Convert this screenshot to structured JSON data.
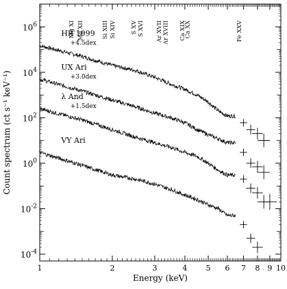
{
  "chart_data": {
    "type": "scatter",
    "xlabel": "Energy (keV)",
    "ylabel": "Count spectrum (ct s⁻¹ keV⁻¹)",
    "x_scale": "log",
    "y_scale": "log",
    "xlim": [
      1,
      10
    ],
    "ylim": [
      5e-05,
      10000000
    ],
    "x_ticks": [
      1,
      2,
      3,
      4,
      5,
      6,
      7,
      8,
      9,
      10
    ],
    "x_tick_labels": [
      "1",
      "2",
      "3",
      "4",
      "5",
      "6",
      "7",
      "8",
      "9",
      "10"
    ],
    "y_ticks": [
      0.0001,
      0.01,
      1,
      100,
      10000,
      1000000
    ],
    "y_tick_labels": [
      {
        "base": "10",
        "exp": "-4"
      },
      {
        "base": "10",
        "exp": "-2"
      },
      {
        "base": "10",
        "exp": "0"
      },
      {
        "base": "10",
        "exp": "2"
      },
      {
        "base": "10",
        "exp": "4"
      },
      {
        "base": "10",
        "exp": "6"
      }
    ],
    "line_labels": [
      {
        "text": "Mg XI",
        "energy": 1.35
      },
      {
        "text": "Mg XII",
        "energy": 1.47
      },
      {
        "text": "Si XIII",
        "energy": 1.86
      },
      {
        "text": "Si XIV",
        "energy": 2.0
      },
      {
        "text": "S XV",
        "energy": 2.45
      },
      {
        "text": "S XVI",
        "energy": 2.62
      },
      {
        "text": "Ar XVII",
        "energy": 3.12
      },
      {
        "text": "Ar XVIII",
        "energy": 3.32
      },
      {
        "text": "Ca XIX",
        "energy": 3.9
      },
      {
        "text": "Ca XX",
        "energy": 4.1
      },
      {
        "text": "Fe XXV",
        "energy": 6.7
      }
    ],
    "series": [
      {
        "name": "HR 1099",
        "offset": "+4.5dex",
        "x": [
          1.0,
          1.5,
          2.0,
          2.5,
          3.0,
          3.5,
          4.0,
          4.5,
          5.0,
          5.5,
          6.0,
          6.5,
          7.0,
          7.5,
          8.0,
          8.5
        ],
        "y": [
          150000,
          50000,
          20000,
          12000,
          6000,
          3000,
          1800,
          1000,
          500,
          200,
          120,
          120,
          60,
          30,
          20,
          10
        ]
      },
      {
        "name": "UX Ari",
        "offset": "+3.0dex",
        "x": [
          1.0,
          1.5,
          2.0,
          2.5,
          3.0,
          3.5,
          4.0,
          4.5,
          5.0,
          5.5,
          6.0,
          6.5,
          7.0,
          7.5,
          8.0,
          8.5
        ],
        "y": [
          5000,
          1500,
          600,
          300,
          160,
          100,
          60,
          30,
          18,
          12,
          8,
          8,
          3,
          1,
          0.7,
          0.4
        ]
      },
      {
        "name": "λ And",
        "offset": "+1.5dex",
        "x": [
          1.0,
          1.5,
          2.0,
          2.5,
          3.0,
          3.5,
          4.0,
          4.5,
          5.0,
          5.5,
          6.0,
          6.5,
          7.0,
          7.5,
          8.0,
          8.5
        ],
        "y": [
          250,
          80,
          30,
          14,
          8,
          5,
          3,
          2,
          1,
          0.5,
          0.3,
          0.3,
          0.2,
          0.08,
          0.05,
          0.02
        ]
      },
      {
        "name": "VY Ari",
        "offset": "",
        "x": [
          1.0,
          1.5,
          2.0,
          2.5,
          3.0,
          3.5,
          4.0,
          4.5,
          5.0,
          5.5,
          6.0,
          6.5,
          7.0,
          7.5,
          8.0,
          9.0
        ],
        "y": [
          3,
          0.8,
          0.3,
          0.2,
          0.12,
          0.07,
          0.04,
          0.025,
          0.015,
          0.01,
          0.005,
          0.005,
          0.002,
          0.0005,
          0.0002,
          0.02
        ]
      }
    ]
  }
}
